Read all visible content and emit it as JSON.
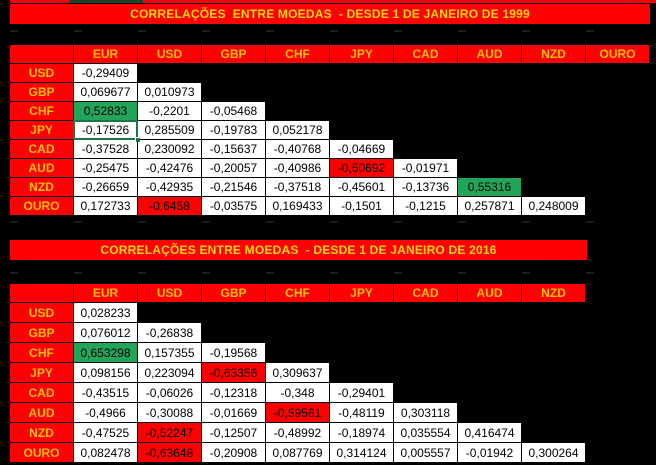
{
  "palette": {
    "background": "#000000",
    "band_red": "#ff0000",
    "header_text_gold": "#ffc000",
    "title_text_yellow": "#ffd900",
    "highlight_green": "#22a45b",
    "highlight_red": "#ff0000",
    "selection_border_green": "#1f7346",
    "cell_white": "#ffffff",
    "top_sliver_green": "#1e4423"
  },
  "tables": [
    {
      "title": "CORRELAÇÕES  ENTRE MOEDAS  - DESDE 1 DE JANEIRO DE 1999",
      "columns": [
        "EUR",
        "USD",
        "GBP",
        "CHF",
        "JPY",
        "CAD",
        "AUD",
        "NZD",
        "OURO"
      ],
      "rows": [
        {
          "label": "USD",
          "cells": [
            {
              "v": "-0,29409"
            }
          ]
        },
        {
          "label": "GBP",
          "cells": [
            {
              "v": "0,069677"
            },
            {
              "v": "0,010973"
            }
          ]
        },
        {
          "label": "CHF",
          "cells": [
            {
              "v": "0,52833",
              "h": "green"
            },
            {
              "v": "-0,2201"
            },
            {
              "v": "-0,05468"
            }
          ]
        },
        {
          "label": "JPY",
          "cells": [
            {
              "v": "-0,17526",
              "selected": true
            },
            {
              "v": "0,285509"
            },
            {
              "v": "-0,19783"
            },
            {
              "v": "0,052178"
            }
          ]
        },
        {
          "label": "CAD",
          "cells": [
            {
              "v": "-0,37528"
            },
            {
              "v": "0,230092"
            },
            {
              "v": "-0,15637"
            },
            {
              "v": "-0,40768"
            },
            {
              "v": "-0,04669"
            }
          ]
        },
        {
          "label": "AUD",
          "cells": [
            {
              "v": "-0,25475"
            },
            {
              "v": "-0,42476"
            },
            {
              "v": "-0,20057"
            },
            {
              "v": "-0,40986"
            },
            {
              "v": "-0,50692",
              "h": "red"
            },
            {
              "v": "-0,01971"
            }
          ]
        },
        {
          "label": "NZD",
          "cells": [
            {
              "v": "-0,26659"
            },
            {
              "v": "-0,42935"
            },
            {
              "v": "-0,21546"
            },
            {
              "v": "-0,37518"
            },
            {
              "v": "-0,45601"
            },
            {
              "v": "-0,13736"
            },
            {
              "v": "0,55316",
              "h": "green"
            }
          ]
        },
        {
          "label": "OURO",
          "cells": [
            {
              "v": "0,172733"
            },
            {
              "v": "-0,6458",
              "h": "red"
            },
            {
              "v": "-0,03575"
            },
            {
              "v": "0,169433"
            },
            {
              "v": "-0,1501"
            },
            {
              "v": "-0,1215"
            },
            {
              "v": "0,257871"
            },
            {
              "v": "0,248009"
            }
          ]
        }
      ]
    },
    {
      "title": "CORRELAÇÕES ENTRE MOEDAS  - DESDE 1 DE JANEIRO DE 2016",
      "columns": [
        "EUR",
        "USD",
        "GBP",
        "CHF",
        "JPY",
        "CAD",
        "AUD",
        "NZD"
      ],
      "rows": [
        {
          "label": "USD",
          "cells": [
            {
              "v": "0,028233"
            }
          ]
        },
        {
          "label": "GBP",
          "cells": [
            {
              "v": "0,076012"
            },
            {
              "v": "-0,26838"
            }
          ]
        },
        {
          "label": "CHF",
          "cells": [
            {
              "v": "0,653298",
              "h": "green"
            },
            {
              "v": "0,157355"
            },
            {
              "v": "-0,19568"
            }
          ]
        },
        {
          "label": "JPY",
          "cells": [
            {
              "v": "0,098156"
            },
            {
              "v": "0,223094"
            },
            {
              "v": "-0,63356",
              "h": "red"
            },
            {
              "v": "0,309637"
            }
          ]
        },
        {
          "label": "CAD",
          "cells": [
            {
              "v": "-0,43515"
            },
            {
              "v": "-0,06026"
            },
            {
              "v": "-0,12318"
            },
            {
              "v": "-0,348"
            },
            {
              "v": "-0,29401"
            }
          ]
        },
        {
          "label": "AUD",
          "cells": [
            {
              "v": "-0,4966"
            },
            {
              "v": "-0,30088"
            },
            {
              "v": "-0,01669"
            },
            {
              "v": "-0,59561",
              "h": "red"
            },
            {
              "v": "-0,48119"
            },
            {
              "v": "0,303118"
            }
          ]
        },
        {
          "label": "NZD",
          "cells": [
            {
              "v": "-0,47525"
            },
            {
              "v": "-0,52247",
              "h": "red"
            },
            {
              "v": "-0,12507"
            },
            {
              "v": "-0,48992"
            },
            {
              "v": "-0,18974"
            },
            {
              "v": "0,035554"
            },
            {
              "v": "0,416474"
            }
          ]
        },
        {
          "label": "OURO",
          "cells": [
            {
              "v": "0,082478"
            },
            {
              "v": "-0,63648",
              "h": "red"
            },
            {
              "v": "-0,20908"
            },
            {
              "v": "0,087769"
            },
            {
              "v": "0,314124"
            },
            {
              "v": "0,005557"
            },
            {
              "v": "-0,01942"
            },
            {
              "v": "0,300264"
            }
          ]
        }
      ]
    }
  ]
}
